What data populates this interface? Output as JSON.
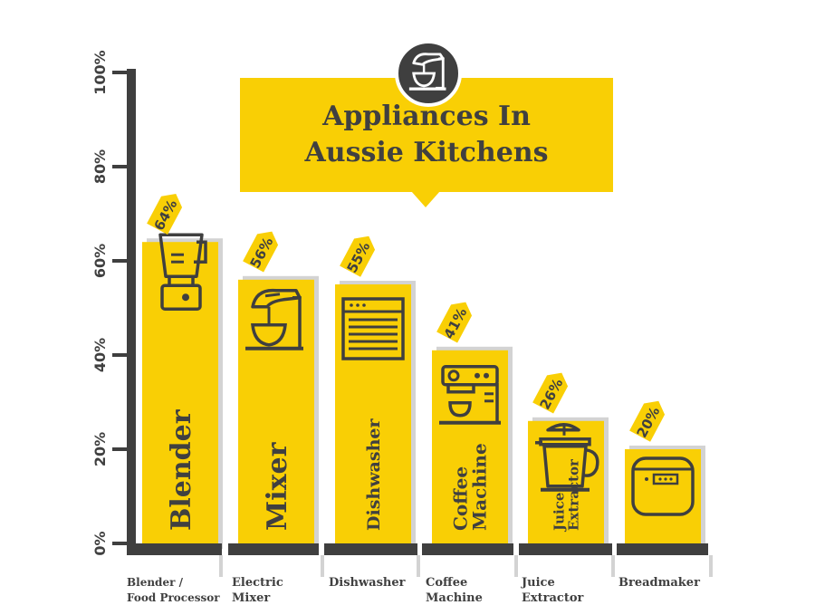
{
  "title": "Appliances In Aussie Kitchens",
  "colors": {
    "bar": "#f9cf05",
    "shadow": "#d3d3d3",
    "axis": "#3f3f3f",
    "text": "#404040"
  },
  "icons": [
    "blender-icon",
    "stand-mixer-icon",
    "dishwasher-icon",
    "coffee-machine-icon",
    "juicer-icon",
    "breadmaker-icon",
    "title-mixer-icon"
  ],
  "chart_data": {
    "type": "bar",
    "title": "Appliances In Aussie Kitchens",
    "categories": [
      "Blender / Food Processor",
      "Electric Mixer",
      "Dishwasher",
      "Coffee Machine",
      "Juice Extractor",
      "Breadmaker"
    ],
    "category_labels": [
      [
        "Blender /",
        "Food Processor"
      ],
      [
        "Electric",
        "Mixer"
      ],
      [
        "Dishwasher"
      ],
      [
        "Coffee",
        "Machine"
      ],
      [
        "Juice",
        "Extractor"
      ],
      [
        "Breadmaker"
      ]
    ],
    "bar_labels": [
      [
        "Blender"
      ],
      [
        "Mixer"
      ],
      [
        "Dishwasher"
      ],
      [
        "Coffee",
        "Machine"
      ],
      [
        "Juice",
        "Extractor"
      ],
      []
    ],
    "values": [
      64,
      56,
      55,
      41,
      26,
      20
    ],
    "value_labels": [
      "64%",
      "56%",
      "55%",
      "41%",
      "26%",
      "20%"
    ],
    "ylim": [
      0,
      100
    ],
    "yticks": [
      "0%",
      "20%",
      "40%",
      "60%",
      "80%",
      "100%"
    ],
    "ytick_values": [
      0,
      20,
      40,
      60,
      80,
      100
    ],
    "grid": false,
    "legend": "none"
  }
}
